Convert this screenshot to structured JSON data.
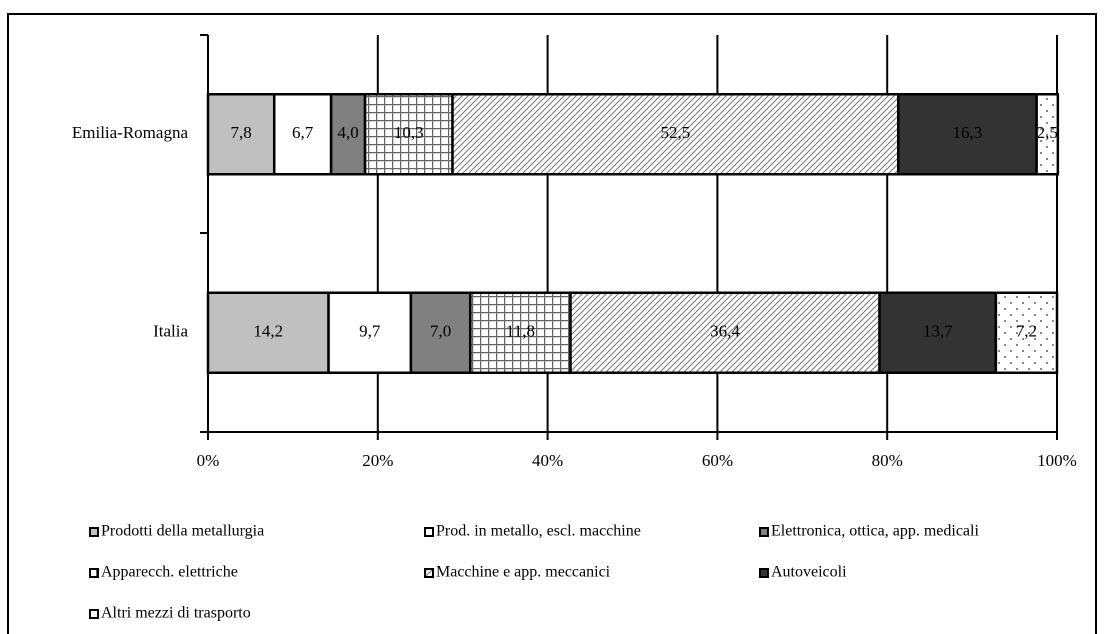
{
  "chart_data": {
    "type": "stacked-barh",
    "categories": [
      "Emilia-Romagna",
      "Italia"
    ],
    "series": [
      {
        "name": "Prodotti della metallurgia",
        "color": "#c0c0c0",
        "values": [
          7.8,
          14.2
        ],
        "value_labels": [
          "7,8",
          "14,2"
        ]
      },
      {
        "name": "Prod. in metallo, escl. macchine",
        "color": "#ffffff",
        "values": [
          6.7,
          9.7
        ],
        "value_labels": [
          "6,7",
          "9,7"
        ]
      },
      {
        "name": "Elettronica, ottica, app. medicali",
        "color": "#808080",
        "values": [
          4.0,
          7.0
        ],
        "value_labels": [
          "4,0",
          "7,0"
        ]
      },
      {
        "name": "Apparecch. elettriche",
        "color": "#ffffff",
        "pattern": "grid",
        "values": [
          10.3,
          11.8
        ],
        "value_labels": [
          "10,3",
          "11,8"
        ]
      },
      {
        "name": "Macchine e app. meccanici",
        "color": "#ffffff",
        "pattern": "hatch",
        "values": [
          52.5,
          36.4
        ],
        "value_labels": [
          "52,5",
          "36,4"
        ]
      },
      {
        "name": "Autoveicoli",
        "color": "#333333",
        "values": [
          16.3,
          13.7
        ],
        "value_labels": [
          "16,3",
          "13,7"
        ]
      },
      {
        "name": "Altri mezzi di trasporto",
        "color": "#ffffff",
        "pattern": "dots",
        "values": [
          2.5,
          7.2
        ],
        "value_labels": [
          "2,5",
          "7,2"
        ]
      }
    ],
    "xlim": [
      0,
      100
    ],
    "xticks": [
      {
        "value": 0,
        "label": "0%"
      },
      {
        "value": 20,
        "label": "20%"
      },
      {
        "value": 40,
        "label": "40%"
      },
      {
        "value": 60,
        "label": "60%"
      },
      {
        "value": 80,
        "label": "80%"
      },
      {
        "value": 100,
        "label": "100%"
      }
    ],
    "grid": true
  }
}
